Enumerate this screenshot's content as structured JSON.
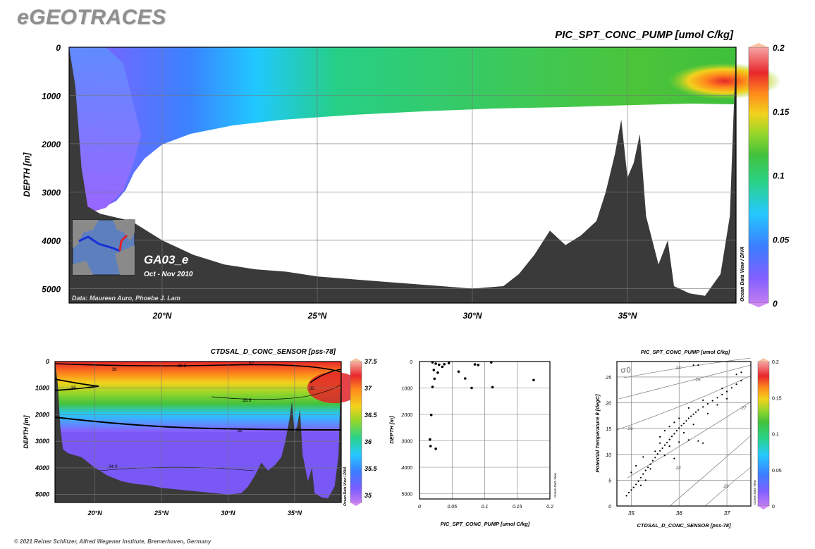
{
  "brand": "eGEOTRACES",
  "copyright": "© 2021 Reiner Schlitzer, Alfred Wegener Institute, Bremerhaven, Germany",
  "colors": {
    "bathymetry": "#3a3a3a",
    "ramp": [
      "#c27cf2",
      "#8060ff",
      "#3b7dff",
      "#25c8ff",
      "#29d389",
      "#43c23c",
      "#95d62a",
      "#f2d21c",
      "#ff8a1c",
      "#e8262b",
      "#f7a5a5"
    ]
  },
  "main": {
    "title": "PIC_SPT_CONC_PUMP [umol C/kg]",
    "cruise": "GA03_e",
    "period": "Oct - Nov 2010",
    "credit": "Data: Maureen Auro, Phoebe J. Lam",
    "watermark": "Ocean Data View / DIVA",
    "ylabel": "DEPTH [m]",
    "x_ticks": [
      "20°N",
      "25°N",
      "30°N",
      "35°N"
    ],
    "y_ticks": [
      "0",
      "1000",
      "2000",
      "3000",
      "4000",
      "5000"
    ],
    "colorbar_ticks": [
      "0.2",
      "0.15",
      "0.1",
      "0.05",
      "0"
    ]
  },
  "salinity": {
    "title": "CTDSAL_D_CONC_SENSOR [pss-78]",
    "watermark": "Ocean Data View / DIVA",
    "ylabel": "DEPTH [m]",
    "x_ticks": [
      "20°N",
      "25°N",
      "30°N",
      "35°N"
    ],
    "y_ticks": [
      "0",
      "1000",
      "2000",
      "3000",
      "4000",
      "5000"
    ],
    "colorbar_ticks": [
      "37.5",
      "37",
      "36.5",
      "36",
      "35.5",
      "35"
    ],
    "contour_labels": [
      "36",
      "36.5",
      "37",
      "35",
      "35.5",
      "35",
      "36",
      "34.9"
    ]
  },
  "profile": {
    "xlabel": "PIC_SPT_CONC_PUMP [umol C/kg]",
    "ylabel": "DEPTH [m]",
    "watermark": "Ocean Data View",
    "x_ticks": [
      "0",
      "0.05",
      "0.1",
      "0.15",
      "0.2"
    ],
    "y_ticks": [
      "0",
      "1000",
      "2000",
      "3000",
      "4000",
      "5000"
    ]
  },
  "ts": {
    "title": "PIC_SPT_CONC_PUMP [umol C/kg]",
    "xlabel": "CTDSAL_D_CONC_SENSOR [pss-78]",
    "ylabel": "Potential Temperature θ [degC]",
    "watermark": "Ocean Data View",
    "sigma_symbol": "σ0",
    "isopycnal_labels": [
      "24",
      "25",
      "26",
      "27",
      "28",
      "29"
    ],
    "x_ticks": [
      "35",
      "36",
      "37"
    ],
    "y_ticks": [
      "0",
      "5",
      "10",
      "15",
      "20",
      "25"
    ],
    "colorbar_ticks": [
      "0.2",
      "0.15",
      "0.1",
      "0.05",
      "0"
    ]
  },
  "chart_data": [
    {
      "type": "heatmap",
      "title": "PIC_SPT_CONC_PUMP [umol C/kg]",
      "xlabel": "",
      "ylabel": "DEPTH [m]",
      "x_unit": "degrees N",
      "xlim": [
        17,
        38.5
      ],
      "ylim": [
        5300,
        0
      ],
      "colorbar_range": [
        0,
        0.2
      ],
      "bathymetry_depth_m": [
        [
          17.0,
          0
        ],
        [
          17.2,
          800
        ],
        [
          17.4,
          2500
        ],
        [
          17.6,
          3300
        ],
        [
          18.0,
          3450
        ],
        [
          19.0,
          3600
        ],
        [
          20.0,
          4000
        ],
        [
          21.0,
          4300
        ],
        [
          22.0,
          4500
        ],
        [
          23.0,
          4600
        ],
        [
          24.0,
          4650
        ],
        [
          25.0,
          4750
        ],
        [
          26.0,
          4800
        ],
        [
          27.0,
          4850
        ],
        [
          28.0,
          4900
        ],
        [
          29.0,
          4950
        ],
        [
          30.0,
          5000
        ],
        [
          31.0,
          4950
        ],
        [
          31.5,
          4700
        ],
        [
          32.0,
          4300
        ],
        [
          32.5,
          3800
        ],
        [
          33.0,
          4100
        ],
        [
          33.5,
          3900
        ],
        [
          34.0,
          3600
        ],
        [
          34.3,
          3000
        ],
        [
          34.6,
          2200
        ],
        [
          34.8,
          1500
        ],
        [
          35.0,
          2700
        ],
        [
          35.2,
          2400
        ],
        [
          35.4,
          1800
        ],
        [
          35.6,
          3500
        ],
        [
          36.0,
          4500
        ],
        [
          36.3,
          4000
        ],
        [
          36.5,
          4950
        ],
        [
          37.0,
          5100
        ],
        [
          37.5,
          5150
        ],
        [
          38.0,
          4700
        ],
        [
          38.3,
          3500
        ],
        [
          38.5,
          0
        ]
      ]
    },
    {
      "type": "heatmap",
      "title": "CTDSAL_D_CONC_SENSOR [pss-78]",
      "ylabel": "DEPTH [m]",
      "xlim": [
        17,
        38.5
      ],
      "ylim": [
        5300,
        0
      ],
      "colorbar_range": [
        34.9,
        37.5
      ]
    },
    {
      "type": "scatter",
      "title": "",
      "xlabel": "PIC_SPT_CONC_PUMP [umol C/kg]",
      "ylabel": "DEPTH [m]",
      "xlim": [
        0,
        0.2
      ],
      "ylim": [
        5200,
        0
      ],
      "points": [
        [
          0.02,
          30
        ],
        [
          0.025,
          80
        ],
        [
          0.03,
          120
        ],
        [
          0.035,
          200
        ],
        [
          0.022,
          320
        ],
        [
          0.028,
          420
        ],
        [
          0.038,
          100
        ],
        [
          0.045,
          60
        ],
        [
          0.06,
          380
        ],
        [
          0.085,
          110
        ],
        [
          0.09,
          130
        ],
        [
          0.11,
          30
        ],
        [
          0.07,
          640
        ],
        [
          0.08,
          1000
        ],
        [
          0.112,
          970
        ],
        [
          0.175,
          700
        ],
        [
          0.02,
          960
        ],
        [
          0.023,
          650
        ],
        [
          0.018,
          2020
        ],
        [
          0.016,
          2950
        ],
        [
          0.017,
          3200
        ],
        [
          0.025,
          3300
        ]
      ]
    },
    {
      "type": "scatter",
      "title": "PIC_SPT_CONC_PUMP [umol C/kg]",
      "xlabel": "CTDSAL_D_CONC_SENSOR [pss-78]",
      "ylabel": "Potential Temperature θ [degC]",
      "xlim": [
        34.7,
        37.5
      ],
      "ylim": [
        0,
        28
      ],
      "points": [
        [
          34.9,
          2.0
        ],
        [
          34.95,
          2.6
        ],
        [
          35.0,
          3.1
        ],
        [
          35.05,
          3.6
        ],
        [
          35.1,
          4.2
        ],
        [
          35.15,
          4.8
        ],
        [
          35.2,
          5.5
        ],
        [
          35.25,
          6.2
        ],
        [
          35.3,
          6.9
        ],
        [
          35.35,
          7.5
        ],
        [
          35.4,
          8.1
        ],
        [
          35.45,
          8.8
        ],
        [
          35.5,
          9.4
        ],
        [
          35.55,
          10.1
        ],
        [
          35.6,
          10.7
        ],
        [
          35.65,
          11.2
        ],
        [
          35.7,
          11.8
        ],
        [
          35.75,
          12.3
        ],
        [
          35.8,
          12.9
        ],
        [
          35.85,
          13.5
        ],
        [
          35.9,
          14.0
        ],
        [
          35.95,
          14.6
        ],
        [
          36.0,
          15.1
        ],
        [
          36.05,
          15.6
        ],
        [
          36.1,
          16.0
        ],
        [
          36.15,
          16.5
        ],
        [
          36.2,
          17.0
        ],
        [
          36.25,
          17.4
        ],
        [
          36.3,
          17.8
        ],
        [
          36.35,
          18.2
        ],
        [
          36.4,
          18.6
        ],
        [
          36.5,
          19.2
        ],
        [
          36.6,
          19.8
        ],
        [
          36.7,
          20.4
        ],
        [
          36.8,
          21.0
        ],
        [
          36.9,
          21.6
        ],
        [
          37.0,
          22.2
        ],
        [
          37.1,
          22.9
        ],
        [
          37.2,
          23.6
        ],
        [
          37.3,
          24.3
        ],
        [
          35.6,
          12.2
        ],
        [
          35.8,
          11.6
        ],
        [
          36.0,
          12.4
        ],
        [
          36.2,
          12.8
        ],
        [
          36.4,
          12.6
        ],
        [
          36.5,
          12.2
        ],
        [
          35.5,
          10.6
        ],
        [
          35.7,
          9.8
        ],
        [
          35.9,
          9.2
        ],
        [
          35.4,
          7.2
        ],
        [
          35.3,
          5.0
        ],
        [
          35.2,
          4.0
        ],
        [
          35.0,
          6.5
        ],
        [
          35.1,
          7.8
        ],
        [
          35.25,
          9.5
        ],
        [
          36.1,
          14.2
        ],
        [
          36.3,
          15.8
        ],
        [
          36.6,
          17.9
        ],
        [
          36.8,
          19.6
        ],
        [
          37.0,
          20.8
        ],
        [
          36.9,
          22.8
        ],
        [
          37.2,
          25.5
        ],
        [
          37.3,
          25.9
        ],
        [
          36.3,
          27.3
        ],
        [
          36.4,
          27.3
        ],
        [
          36.5,
          20.5
        ],
        [
          36.2,
          19.0
        ],
        [
          36.0,
          17.0
        ],
        [
          35.9,
          16.2
        ],
        [
          35.7,
          14.6
        ],
        [
          35.6,
          13.4
        ],
        [
          35.8,
          15.4
        ]
      ]
    }
  ]
}
